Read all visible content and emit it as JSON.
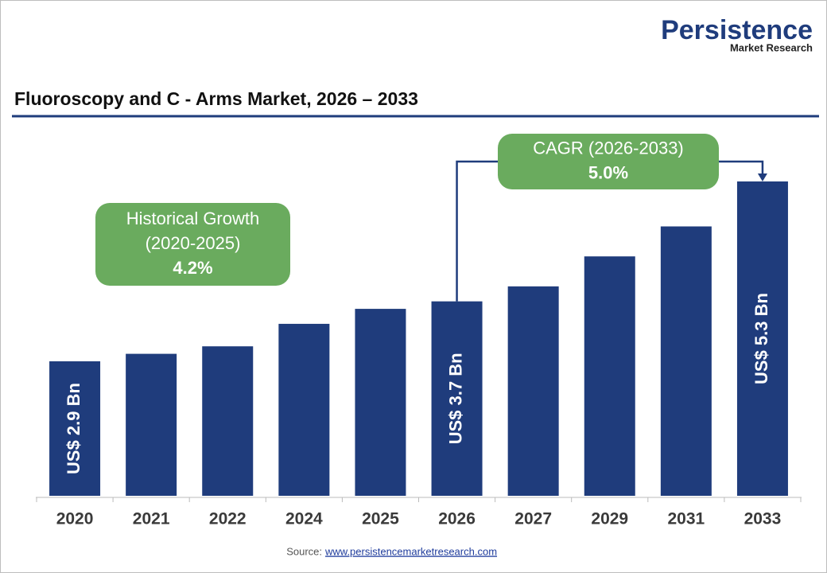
{
  "chart_data": {
    "type": "bar",
    "title": "Fluoroscopy and C - Arms Market, 2026 – 2033",
    "brand": "Persistence",
    "brand_sub": "Market Research",
    "categories": [
      "2020",
      "2021",
      "2022",
      "2024",
      "2025",
      "2026",
      "2027",
      "2029",
      "2031",
      "2033"
    ],
    "values": [
      2.9,
      3.0,
      3.1,
      3.4,
      3.6,
      3.7,
      3.9,
      4.3,
      4.7,
      5.3
    ],
    "value_labels": [
      "US$ 2.9 Bn",
      null,
      null,
      null,
      null,
      "US$ 3.7 Bn",
      null,
      null,
      null,
      "US$ 5.3 Bn"
    ],
    "color": "#1f3c7c",
    "annotations": [
      {
        "lines": [
          "Historical Growth",
          "(2020-2025)",
          "4.2%"
        ],
        "color": "#6aab5e"
      },
      {
        "lines": [
          "CAGR (2026-2033)",
          "5.0%"
        ],
        "color": "#6aab5e"
      }
    ],
    "source_label": "Source:",
    "source": "www.persistencemarketresearch.com"
  }
}
